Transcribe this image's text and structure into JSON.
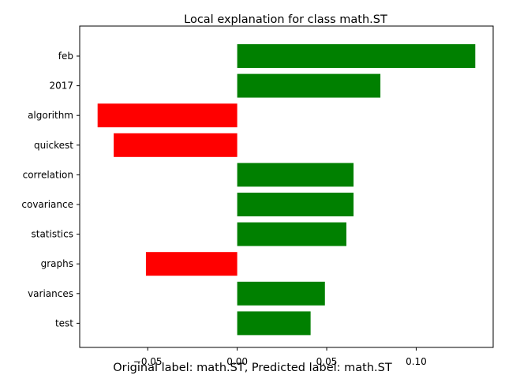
{
  "chart_data": {
    "type": "bar",
    "orientation": "horizontal",
    "title": "Local explanation for class math.ST",
    "categories": [
      "feb",
      "2017",
      "algorithm",
      "quickest",
      "correlation",
      "covariance",
      "statistics",
      "graphs",
      "variances",
      "test"
    ],
    "values": [
      0.133,
      0.08,
      -0.078,
      -0.069,
      0.065,
      0.065,
      0.061,
      -0.051,
      0.049,
      0.041
    ],
    "positive_color": "#008000",
    "negative_color": "#ff0000",
    "xlim": [
      -0.088,
      0.143
    ],
    "xticks": [
      -0.05,
      0.0,
      0.05,
      0.1
    ],
    "xtick_labels": [
      "−0.05",
      "0.00",
      "0.05",
      "0.10"
    ],
    "grid": false,
    "legend": "none"
  },
  "caption": "Original label: math.ST, Predicted label: math.ST"
}
